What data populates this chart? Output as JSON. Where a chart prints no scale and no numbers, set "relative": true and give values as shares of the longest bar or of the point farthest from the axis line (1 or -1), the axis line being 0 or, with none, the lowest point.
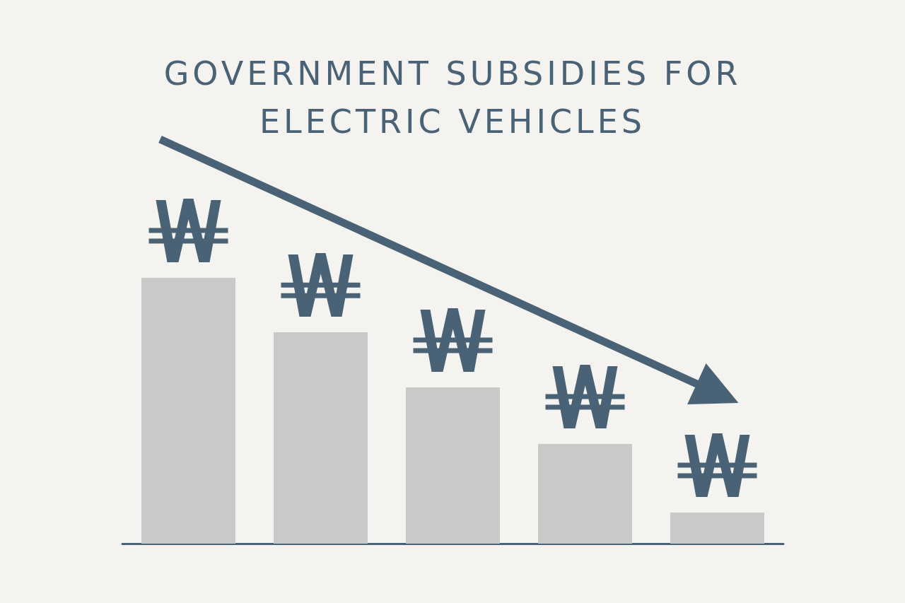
{
  "chart_data": {
    "type": "bar",
    "title": "GOVERNMENT SUBSIDIES FOR ELECTRIC VEHICLES",
    "categories": [
      null,
      null,
      null,
      null,
      null
    ],
    "values": [
      1,
      0.795,
      0.588,
      0.375,
      0.117
    ],
    "color": "#c8c9c9",
    "relative": true,
    "grid": false
  }
}
